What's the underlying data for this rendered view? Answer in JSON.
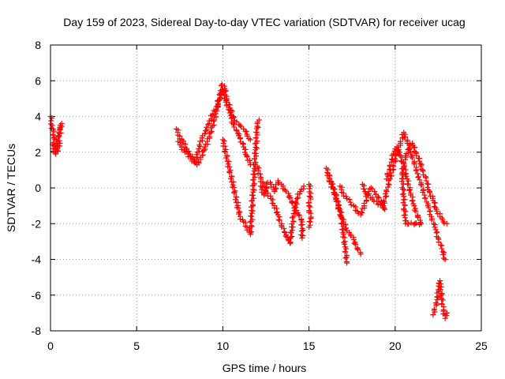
{
  "chart_data": {
    "type": "scatter",
    "title": "Day 159 of 2023, Sidereal Day-to-day VTEC variation (SDTVAR) for receiver ucag",
    "xlabel": "GPS time / hours",
    "ylabel": "SDTVAR / TECUs",
    "xlim": [
      0,
      25
    ],
    "ylim": [
      -8,
      8
    ],
    "xticks": [
      "0",
      "5",
      "10",
      "15",
      "20",
      "25"
    ],
    "yticks": [
      "8",
      "6",
      "4",
      "2",
      "0",
      "-2",
      "-4",
      "-6",
      "-8"
    ],
    "grid": true,
    "marker": "+",
    "color": "#ff0000",
    "series": [
      {
        "name": "SDTVAR",
        "segments": [
          [
            [
              0.0,
              4.0
            ],
            [
              0.1,
              3.5
            ],
            [
              0.2,
              2.8
            ],
            [
              0.15,
              2.2
            ],
            [
              0.25,
              2.0
            ],
            [
              0.35,
              2.6
            ],
            [
              0.45,
              3.1
            ],
            [
              0.55,
              3.4
            ],
            [
              0.65,
              3.6
            ],
            [
              0.5,
              2.9
            ],
            [
              0.4,
              2.3
            ],
            [
              0.3,
              1.9
            ],
            [
              0.55,
              2.5
            ]
          ],
          [
            [
              7.3,
              3.3
            ],
            [
              7.5,
              2.9
            ],
            [
              7.7,
              2.5
            ],
            [
              7.9,
              2.2
            ],
            [
              8.1,
              1.8
            ],
            [
              8.3,
              1.6
            ],
            [
              8.5,
              1.3
            ],
            [
              8.7,
              1.6
            ],
            [
              8.9,
              2.1
            ],
            [
              9.1,
              2.6
            ],
            [
              9.3,
              3.1
            ],
            [
              9.5,
              3.8
            ],
            [
              9.7,
              4.6
            ],
            [
              9.85,
              5.3
            ],
            [
              9.95,
              5.8
            ],
            [
              10.1,
              5.7
            ],
            [
              10.2,
              5.0
            ],
            [
              10.4,
              4.5
            ],
            [
              10.6,
              4.0
            ],
            [
              10.8,
              3.7
            ],
            [
              11.0,
              3.5
            ],
            [
              11.2,
              3.3
            ],
            [
              11.4,
              3.0
            ],
            [
              11.6,
              2.7
            ]
          ],
          [
            [
              7.4,
              2.6
            ],
            [
              7.6,
              2.3
            ],
            [
              7.8,
              2.0
            ],
            [
              8.0,
              1.9
            ],
            [
              8.2,
              1.5
            ],
            [
              8.4,
              1.4
            ],
            [
              8.6,
              2.2
            ],
            [
              8.8,
              2.8
            ],
            [
              9.0,
              3.2
            ],
            [
              9.2,
              3.6
            ],
            [
              9.4,
              4.1
            ],
            [
              9.6,
              4.4
            ],
            [
              9.8,
              4.9
            ],
            [
              10.0,
              5.5
            ],
            [
              10.2,
              4.8
            ],
            [
              10.4,
              4.2
            ],
            [
              10.6,
              3.6
            ],
            [
              10.8,
              3.2
            ],
            [
              11.0,
              2.8
            ],
            [
              11.2,
              2.3
            ],
            [
              11.4,
              1.8
            ],
            [
              11.6,
              1.3
            ]
          ],
          [
            [
              10.0,
              2.7
            ],
            [
              11.0,
              -1.6
            ],
            [
              11.2,
              -1.9
            ],
            [
              11.4,
              -2.2
            ],
            [
              11.6,
              -2.6
            ],
            [
              12.0,
              3.6
            ],
            [
              12.1,
              3.8
            ]
          ],
          [
            [
              12.0,
              1.2
            ],
            [
              12.2,
              0.5
            ],
            [
              12.4,
              0.1
            ],
            [
              12.6,
              -0.3
            ],
            [
              12.8,
              -0.6
            ],
            [
              13.0,
              -1.0
            ],
            [
              13.2,
              -1.5
            ],
            [
              13.4,
              -2.1
            ],
            [
              13.6,
              -2.5
            ],
            [
              13.8,
              -2.9
            ],
            [
              13.9,
              -3.1
            ],
            [
              14.1,
              -1.6
            ],
            [
              14.3,
              -0.6
            ],
            [
              14.5,
              -0.2
            ],
            [
              14.7,
              0.1
            ]
          ],
          [
            [
              12.2,
              0.1
            ],
            [
              12.4,
              -0.4
            ],
            [
              12.6,
              0.3
            ],
            [
              12.8,
              0.2
            ],
            [
              13.0,
              -0.2
            ],
            [
              13.2,
              0.4
            ],
            [
              13.4,
              0.2
            ],
            [
              13.6,
              -0.1
            ],
            [
              13.8,
              -0.3
            ],
            [
              14.0,
              -0.8
            ],
            [
              14.2,
              -1.1
            ],
            [
              14.4,
              -1.5
            ],
            [
              14.6,
              -1.9
            ],
            [
              14.6,
              -2.8
            ]
          ],
          [
            [
              15.0,
              0.2
            ],
            [
              15.1,
              -0.3
            ],
            [
              15.0,
              -1.0
            ],
            [
              15.1,
              -1.7
            ],
            [
              15.0,
              -2.2
            ]
          ],
          [
            [
              16.0,
              1.1
            ],
            [
              16.2,
              0.5
            ],
            [
              16.4,
              0.0
            ],
            [
              16.6,
              -0.6
            ],
            [
              16.8,
              -1.3
            ],
            [
              17.0,
              -1.9
            ],
            [
              17.2,
              -2.4
            ],
            [
              17.4,
              -2.6
            ],
            [
              17.6,
              -2.9
            ],
            [
              17.8,
              -3.4
            ],
            [
              18.0,
              -3.7
            ]
          ],
          [
            [
              16.1,
              0.8
            ],
            [
              16.3,
              0.2
            ],
            [
              16.5,
              -0.3
            ],
            [
              16.7,
              -1.0
            ],
            [
              16.9,
              -1.7
            ],
            [
              17.0,
              -2.6
            ],
            [
              17.1,
              -3.3
            ],
            [
              17.2,
              -4.2
            ]
          ],
          [
            [
              16.8,
              0.1
            ],
            [
              17.0,
              -0.3
            ],
            [
              17.2,
              -0.6
            ],
            [
              17.4,
              -0.8
            ],
            [
              17.6,
              -1.0
            ],
            [
              17.8,
              -1.3
            ],
            [
              18.0,
              -1.5
            ],
            [
              18.2,
              -1.0
            ],
            [
              18.4,
              -0.4
            ],
            [
              18.6,
              0.0
            ],
            [
              18.8,
              -0.2
            ],
            [
              19.0,
              -0.5
            ],
            [
              19.2,
              -0.8
            ],
            [
              19.4,
              -1.2
            ],
            [
              18.3,
              -0.3
            ],
            [
              18.1,
              0.2
            ]
          ],
          [
            [
              19.3,
              -1.0
            ],
            [
              19.5,
              -0.2
            ],
            [
              19.7,
              0.5
            ],
            [
              19.9,
              1.2
            ],
            [
              20.1,
              1.9
            ],
            [
              20.3,
              2.5
            ],
            [
              20.5,
              3.1
            ],
            [
              20.7,
              2.6
            ],
            [
              20.9,
              2.0
            ],
            [
              21.1,
              1.4
            ],
            [
              21.3,
              0.8
            ],
            [
              21.5,
              0.2
            ],
            [
              21.7,
              -0.4
            ],
            [
              21.9,
              -1.0
            ],
            [
              22.1,
              -1.6
            ],
            [
              22.3,
              -2.2
            ],
            [
              22.5,
              -2.8
            ],
            [
              22.7,
              -3.4
            ],
            [
              22.9,
              -4.0
            ]
          ],
          [
            [
              19.5,
              0.5
            ],
            [
              19.7,
              1.2
            ],
            [
              19.9,
              1.9
            ],
            [
              20.1,
              2.3
            ],
            [
              20.3,
              1.8
            ],
            [
              20.5,
              1.2
            ],
            [
              20.7,
              0.5
            ],
            [
              20.9,
              -0.3
            ],
            [
              21.1,
              -1.0
            ],
            [
              21.3,
              -1.6
            ],
            [
              21.5,
              -2.0
            ],
            [
              20.6,
              -2.0
            ],
            [
              20.4,
              0.8
            ],
            [
              20.6,
              1.8
            ],
            [
              20.8,
              2.2
            ],
            [
              21.0,
              2.5
            ],
            [
              21.2,
              2.0
            ],
            [
              21.4,
              1.5
            ],
            [
              21.6,
              1.0
            ],
            [
              21.8,
              0.4
            ],
            [
              22.0,
              -0.2
            ],
            [
              22.2,
              -0.7
            ],
            [
              22.4,
              -1.2
            ],
            [
              22.6,
              -1.6
            ],
            [
              22.8,
              -1.9
            ],
            [
              23.0,
              -2.0
            ]
          ],
          [
            [
              22.2,
              -7.1
            ],
            [
              22.4,
              -6.5
            ],
            [
              22.5,
              -5.7
            ],
            [
              22.6,
              -5.2
            ],
            [
              22.7,
              -6.2
            ],
            [
              22.8,
              -6.9
            ],
            [
              22.9,
              -7.3
            ],
            [
              23.0,
              -7.0
            ]
          ]
        ]
      }
    ]
  }
}
